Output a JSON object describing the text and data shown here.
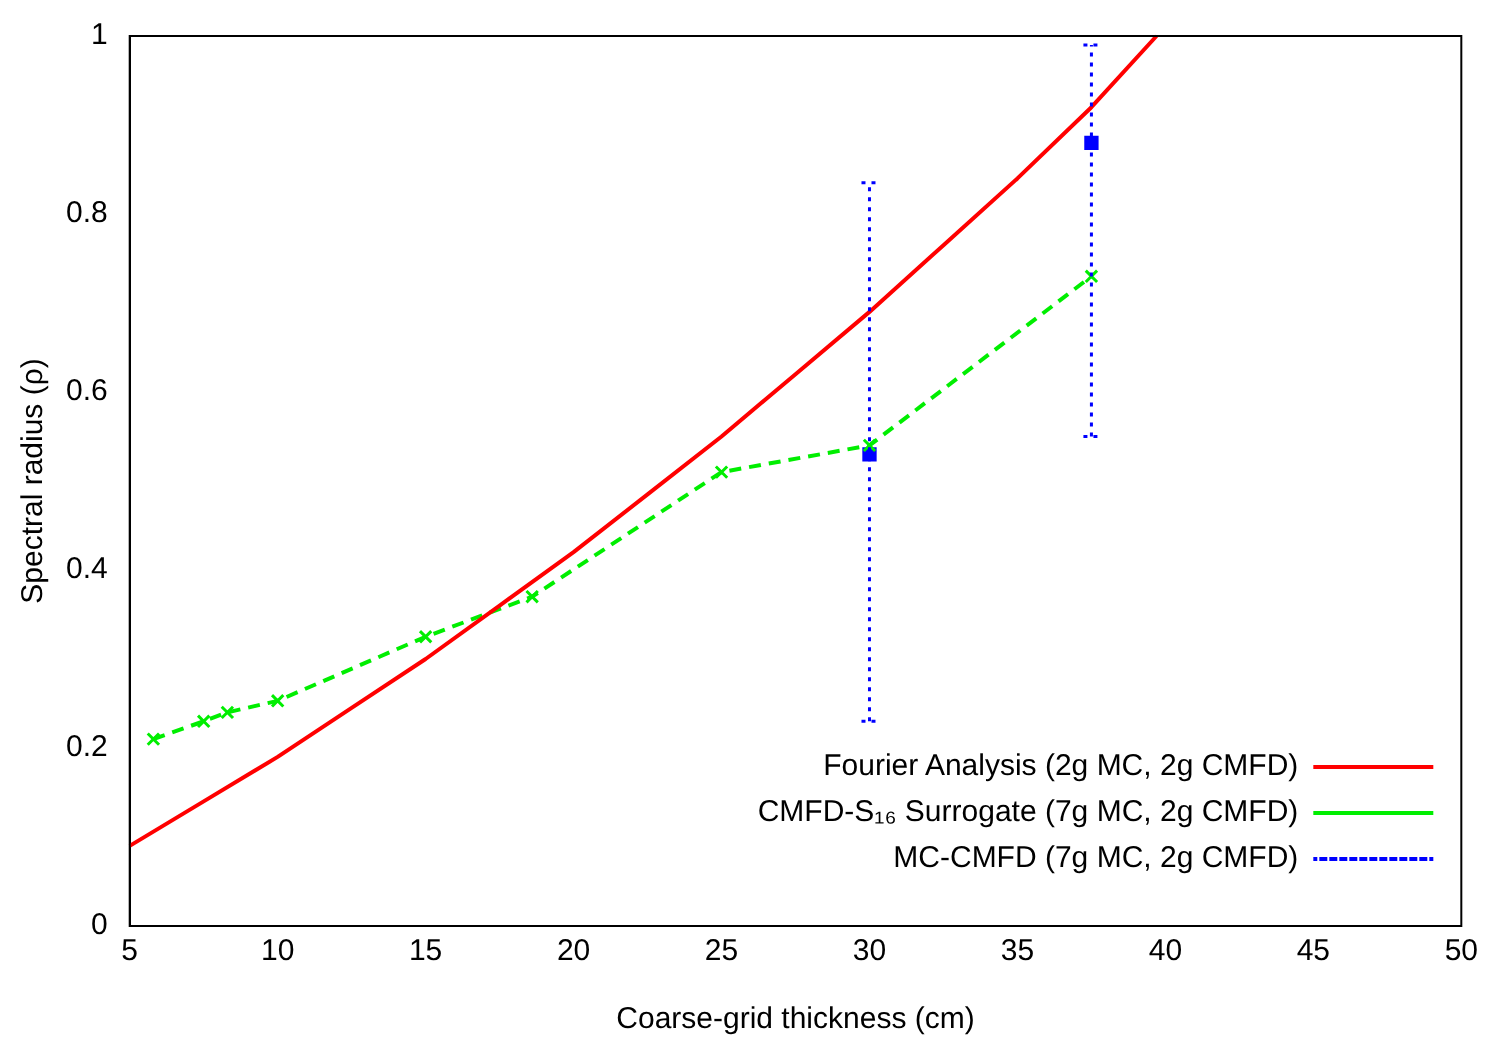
{
  "chart_data": {
    "type": "line",
    "xlabel": "Coarse-grid thickness (cm)",
    "ylabel": "Spectral radius (ρ)",
    "xlim": [
      5,
      50
    ],
    "xticks": [
      5,
      10,
      15,
      20,
      25,
      30,
      35,
      40,
      45,
      50
    ],
    "ylim": [
      0,
      1
    ],
    "yticks": [
      0,
      0.2,
      0.4,
      0.6,
      0.8,
      1
    ],
    "grid": false,
    "legend": "bottom right",
    "series": [
      {
        "name": "Fourier Analysis (2g MC, 2g CMFD)",
        "color": "#ff0000",
        "marker": "none",
        "line_style": "solid",
        "x": [
          5,
          7.5,
          10,
          12.5,
          15,
          17.5,
          20,
          22.5,
          25,
          27.5,
          30,
          32.5,
          35,
          37.5,
          39.7
        ],
        "values": [
          0.09,
          0.14,
          0.19,
          0.245,
          0.3,
          0.36,
          0.42,
          0.485,
          0.55,
          0.62,
          0.69,
          0.765,
          0.84,
          0.92,
          1.0
        ]
      },
      {
        "name": "CMFD-S₁₆ Surrogate (7g MC, 2g CMFD)",
        "color": "#00ee00",
        "marker": "cross",
        "line_style": "dashed",
        "x": [
          5.8,
          7.5,
          8.3,
          10,
          15,
          18.6,
          25,
          30,
          37.5
        ],
        "values": [
          0.21,
          0.23,
          0.24,
          0.253,
          0.325,
          0.37,
          0.51,
          0.54,
          0.73
        ]
      },
      {
        "name": "MC-CMFD (7g MC, 2g CMFD)",
        "color": "#0000ff",
        "type": "scatter",
        "marker": "square",
        "line_style": "dotted",
        "x": [
          30,
          37.5
        ],
        "values": [
          0.53,
          0.88
        ],
        "errors": [
          [
            0.23,
            0.835
          ],
          [
            0.55,
            0.99
          ]
        ]
      }
    ]
  }
}
